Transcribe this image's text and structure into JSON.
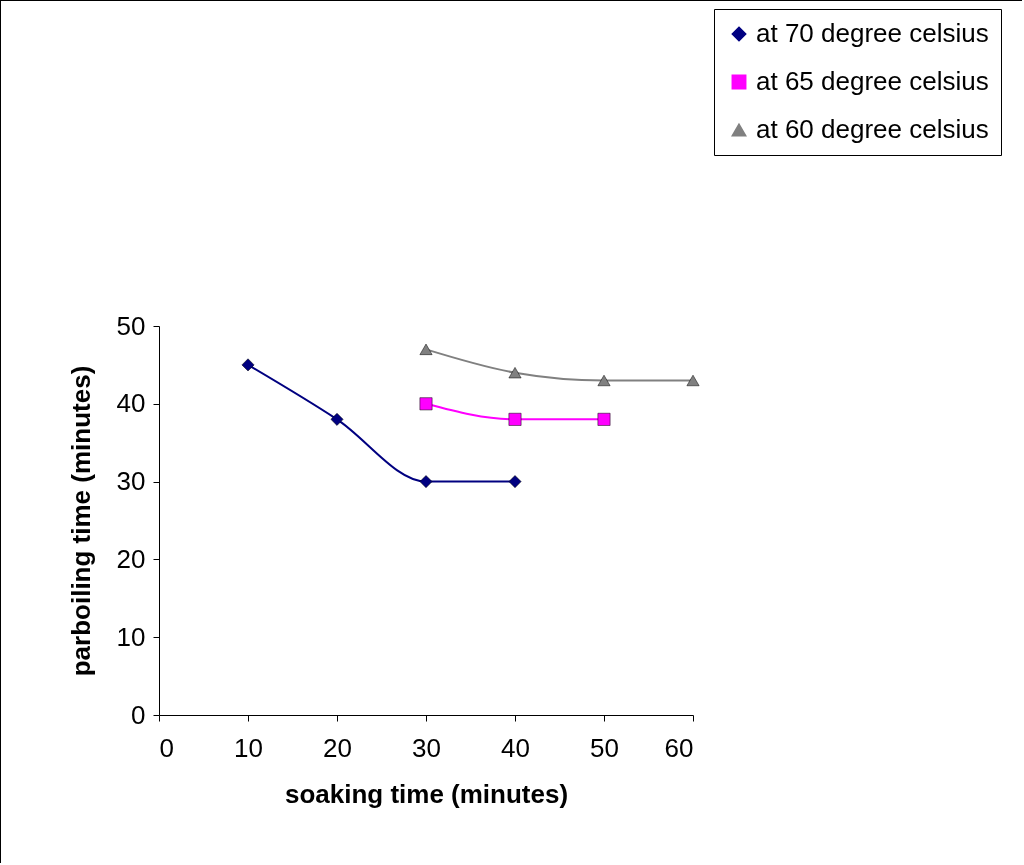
{
  "chart_data": {
    "type": "line",
    "xlabel": "soaking time (minutes)",
    "ylabel": "parboiling time (minutes)",
    "xlim": [
      0,
      60
    ],
    "xticks": [
      0,
      10,
      20,
      30,
      40,
      50,
      60
    ],
    "ylim": [
      0,
      50
    ],
    "yticks": [
      0,
      10,
      20,
      30,
      40,
      50
    ],
    "grid": false,
    "legend": "top right",
    "line_style": "solid",
    "series": [
      {
        "name": "at 70 degree celsius",
        "color": "#000080",
        "marker": "diamond",
        "x": [
          10,
          20,
          30,
          40
        ],
        "values": [
          45,
          38,
          30,
          30
        ]
      },
      {
        "name": "at 65 degree celsius",
        "color": "#ff00ff",
        "marker": "square",
        "x": [
          30,
          40,
          50
        ],
        "values": [
          40,
          38,
          38
        ]
      },
      {
        "name": "at 60 degree celsius",
        "color": "#808080",
        "marker": "triangle",
        "x": [
          30,
          40,
          50,
          60
        ],
        "values": [
          47,
          44,
          43,
          43
        ]
      }
    ]
  }
}
